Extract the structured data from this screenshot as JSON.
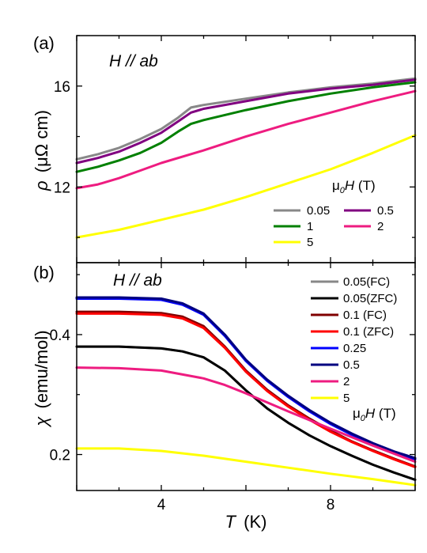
{
  "chart_data": [
    {
      "panel": "(a)",
      "type": "line",
      "condition": "H // ab",
      "ylabel_symbol": "ρ",
      "ylabel": "(μΩ cm)",
      "xlabel_symbol": "T",
      "xlabel": "(K)",
      "xlim": [
        2,
        10
      ],
      "ylim": [
        9,
        18
      ],
      "yticks": [
        "12",
        "16"
      ],
      "legend_title": "μ0H (T)",
      "legend_position": "bottom-right",
      "series": [
        {
          "name": "0.05",
          "color": "#888888",
          "points": [
            [
              2,
              13.1
            ],
            [
              2.5,
              13.3
            ],
            [
              3,
              13.55
            ],
            [
              3.5,
              13.9
            ],
            [
              4,
              14.3
            ],
            [
              4.4,
              14.75
            ],
            [
              4.7,
              15.15
            ],
            [
              5,
              15.25
            ],
            [
              6,
              15.5
            ],
            [
              7,
              15.75
            ],
            [
              8,
              15.95
            ],
            [
              9,
              16.1
            ],
            [
              10,
              16.3
            ]
          ]
        },
        {
          "name": "0.5",
          "color": "#800080",
          "points": [
            [
              2,
              12.95
            ],
            [
              2.5,
              13.15
            ],
            [
              3,
              13.4
            ],
            [
              3.5,
              13.75
            ],
            [
              4,
              14.15
            ],
            [
              4.4,
              14.6
            ],
            [
              4.7,
              14.95
            ],
            [
              5,
              15.1
            ],
            [
              6,
              15.4
            ],
            [
              7,
              15.7
            ],
            [
              8,
              15.9
            ],
            [
              9,
              16.05
            ],
            [
              10,
              16.25
            ]
          ]
        },
        {
          "name": "1",
          "color": "#008000",
          "points": [
            [
              2,
              12.6
            ],
            [
              2.5,
              12.8
            ],
            [
              3,
              13.05
            ],
            [
              3.5,
              13.35
            ],
            [
              4,
              13.75
            ],
            [
              4.4,
              14.2
            ],
            [
              4.7,
              14.5
            ],
            [
              5,
              14.65
            ],
            [
              6,
              15.05
            ],
            [
              7,
              15.4
            ],
            [
              8,
              15.7
            ],
            [
              9,
              15.95
            ],
            [
              10,
              16.15
            ]
          ]
        },
        {
          "name": "2",
          "color": "#ee1c80",
          "points": [
            [
              2,
              11.95
            ],
            [
              2.5,
              12.1
            ],
            [
              3,
              12.35
            ],
            [
              3.5,
              12.65
            ],
            [
              4,
              12.95
            ],
            [
              5,
              13.45
            ],
            [
              6,
              14.0
            ],
            [
              7,
              14.5
            ],
            [
              8,
              14.95
            ],
            [
              9,
              15.4
            ],
            [
              10,
              15.8
            ]
          ]
        },
        {
          "name": "5",
          "color": "#ffff00",
          "points": [
            [
              2,
              10.0
            ],
            [
              3,
              10.3
            ],
            [
              4,
              10.7
            ],
            [
              5,
              11.1
            ],
            [
              6,
              11.6
            ],
            [
              7,
              12.15
            ],
            [
              8,
              12.7
            ],
            [
              9,
              13.35
            ],
            [
              10,
              14.05
            ]
          ]
        }
      ]
    },
    {
      "panel": "(b)",
      "type": "line",
      "condition": "H // ab",
      "ylabel_symbol": "χ",
      "ylabel": "(emu/mol)",
      "xlabel_symbol": "T",
      "xlabel": "(K)",
      "xlim": [
        2,
        10
      ],
      "ylim": [
        0.14,
        0.52
      ],
      "yticks": [
        "0.2",
        "0.4"
      ],
      "xticks": [
        "4",
        "8"
      ],
      "legend_title": "μ0H (T)",
      "legend_position": "right",
      "series": [
        {
          "name": "0.05(FC)",
          "color": "#888888",
          "points": [
            [
              2,
              0.38
            ],
            [
              3,
              0.38
            ],
            [
              4,
              0.377
            ],
            [
              4.5,
              0.372
            ],
            [
              5,
              0.362
            ],
            [
              5.5,
              0.34
            ],
            [
              6,
              0.307
            ],
            [
              6.5,
              0.277
            ],
            [
              7,
              0.253
            ],
            [
              7.5,
              0.232
            ],
            [
              8,
              0.214
            ],
            [
              8.5,
              0.198
            ],
            [
              9,
              0.183
            ],
            [
              9.5,
              0.17
            ],
            [
              10,
              0.158
            ]
          ]
        },
        {
          "name": "0.05(ZFC)",
          "color": "#000000",
          "points": [
            [
              2,
              0.38
            ],
            [
              3,
              0.38
            ],
            [
              4,
              0.377
            ],
            [
              4.5,
              0.372
            ],
            [
              5,
              0.362
            ],
            [
              5.5,
              0.34
            ],
            [
              6,
              0.307
            ],
            [
              6.5,
              0.277
            ],
            [
              7,
              0.253
            ],
            [
              7.5,
              0.232
            ],
            [
              8,
              0.214
            ],
            [
              8.5,
              0.198
            ],
            [
              9,
              0.183
            ],
            [
              9.5,
              0.17
            ],
            [
              10,
              0.158
            ]
          ]
        },
        {
          "name": "0.1 (FC)",
          "color": "#800000",
          "points": [
            [
              2,
              0.438
            ],
            [
              3,
              0.438
            ],
            [
              4,
              0.436
            ],
            [
              4.5,
              0.43
            ],
            [
              5,
              0.414
            ],
            [
              5.5,
              0.38
            ],
            [
              6,
              0.34
            ],
            [
              6.5,
              0.308
            ],
            [
              7,
              0.282
            ],
            [
              7.5,
              0.26
            ],
            [
              8,
              0.24
            ],
            [
              8.5,
              0.222
            ],
            [
              9,
              0.207
            ],
            [
              9.5,
              0.193
            ],
            [
              10,
              0.18
            ]
          ]
        },
        {
          "name": "0.1 (ZFC)",
          "color": "#ff0000",
          "points": [
            [
              2,
              0.435
            ],
            [
              3,
              0.435
            ],
            [
              4,
              0.433
            ],
            [
              4.5,
              0.427
            ],
            [
              5,
              0.411
            ],
            [
              5.5,
              0.378
            ],
            [
              6,
              0.338
            ],
            [
              6.5,
              0.306
            ],
            [
              7,
              0.28
            ],
            [
              7.5,
              0.258
            ],
            [
              8,
              0.238
            ],
            [
              8.5,
              0.221
            ],
            [
              9,
              0.206
            ],
            [
              9.5,
              0.192
            ],
            [
              10,
              0.179
            ]
          ]
        },
        {
          "name": "0.25",
          "color": "#0000ff",
          "points": [
            [
              2,
              0.46
            ],
            [
              3,
              0.46
            ],
            [
              4,
              0.458
            ],
            [
              4.5,
              0.45
            ],
            [
              5,
              0.433
            ],
            [
              5.5,
              0.398
            ],
            [
              6,
              0.356
            ],
            [
              6.5,
              0.323
            ],
            [
              7,
              0.296
            ],
            [
              7.5,
              0.272
            ],
            [
              8,
              0.251
            ],
            [
              8.5,
              0.233
            ],
            [
              9,
              0.217
            ],
            [
              9.5,
              0.203
            ],
            [
              10,
              0.192
            ]
          ]
        },
        {
          "name": "0.5",
          "color": "#000080",
          "points": [
            [
              2,
              0.462
            ],
            [
              3,
              0.462
            ],
            [
              4,
              0.46
            ],
            [
              4.5,
              0.452
            ],
            [
              5,
              0.435
            ],
            [
              5.5,
              0.4
            ],
            [
              6,
              0.358
            ],
            [
              6.5,
              0.325
            ],
            [
              7,
              0.298
            ],
            [
              7.5,
              0.274
            ],
            [
              8,
              0.253
            ],
            [
              8.5,
              0.235
            ],
            [
              9,
              0.219
            ],
            [
              9.5,
              0.205
            ],
            [
              10,
              0.194
            ]
          ]
        },
        {
          "name": "2",
          "color": "#ee1c80",
          "points": [
            [
              2,
              0.345
            ],
            [
              3,
              0.344
            ],
            [
              4,
              0.34
            ],
            [
              5,
              0.327
            ],
            [
              5.5,
              0.316
            ],
            [
              6,
              0.302
            ],
            [
              7,
              0.272
            ],
            [
              8,
              0.243
            ],
            [
              9,
              0.215
            ],
            [
              10,
              0.188
            ]
          ]
        },
        {
          "name": "5",
          "color": "#ffff00",
          "points": [
            [
              2,
              0.21
            ],
            [
              3,
              0.21
            ],
            [
              4,
              0.206
            ],
            [
              5,
              0.198
            ],
            [
              6,
              0.188
            ],
            [
              7,
              0.178
            ],
            [
              8,
              0.168
            ],
            [
              9,
              0.159
            ],
            [
              10,
              0.149
            ]
          ]
        }
      ]
    }
  ]
}
